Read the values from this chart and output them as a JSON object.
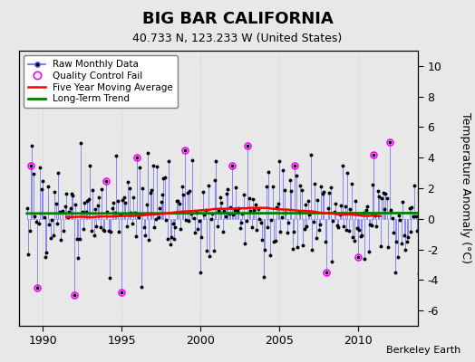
{
  "title": "BIG BAR CALIFORNIA",
  "subtitle": "40.733 N, 123.233 W (United States)",
  "ylabel": "Temperature Anomaly (°C)",
  "attribution": "Berkeley Earth",
  "xlim": [
    1988.5,
    2013.8
  ],
  "ylim": [
    -7,
    11
  ],
  "yticks": [
    -6,
    -4,
    -2,
    0,
    2,
    4,
    6,
    8,
    10
  ],
  "xticks": [
    1990,
    1995,
    2000,
    2005,
    2010
  ],
  "background_color": "#e8e8e8",
  "plot_bg_color": "#e8e8e8",
  "raw_line_color": "#6666ff",
  "raw_marker_color": "black",
  "qc_fail_color": "magenta",
  "moving_avg_color": "red",
  "trend_color": "green",
  "title_fontsize": 13,
  "subtitle_fontsize": 9,
  "grid_color": "#cccccc",
  "trend_level": 0.3,
  "moving_avg_peak": 0.7,
  "moving_avg_peak_year": 2003.0
}
